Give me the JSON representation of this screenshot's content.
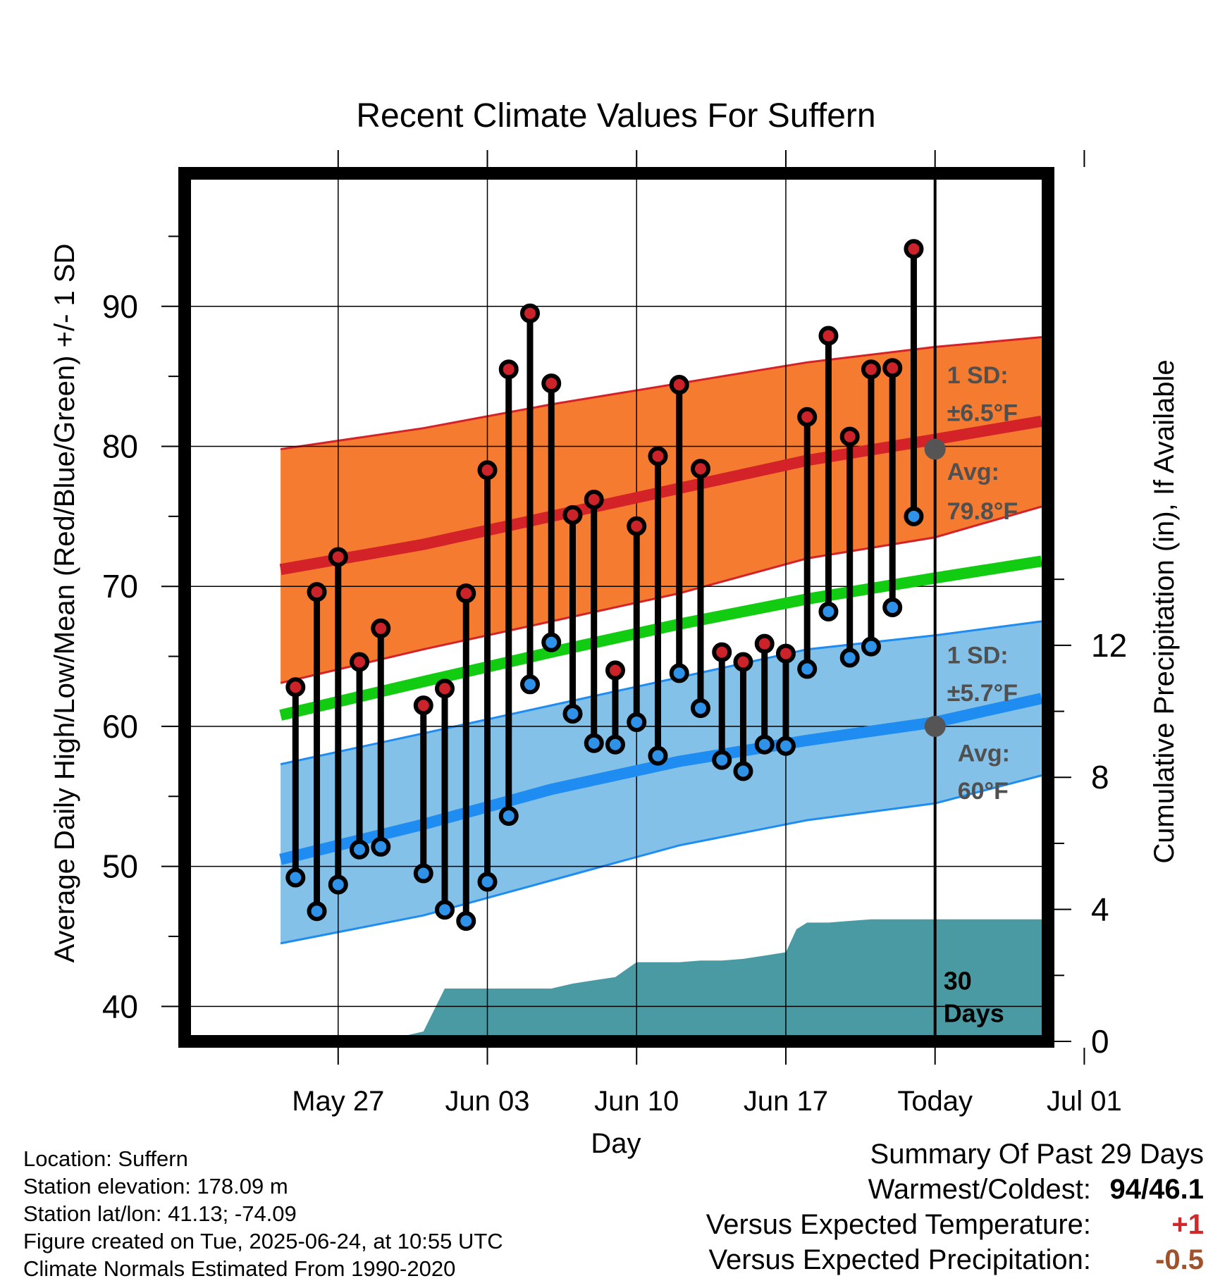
{
  "chart_data": {
    "type": "line",
    "title": "Recent Climate Values For Suffern",
    "xlabel": "Day",
    "ylabel": "Average Daily High/Low/Mean (Red/Blue/Green) +/- 1 SD",
    "y2label": "Cumulative Precipitation (in), If Available",
    "ylim": [
      37.5,
      99.5
    ],
    "y2lim": [
      0,
      26.3
    ],
    "yticks": [
      40,
      50,
      60,
      70,
      80,
      90
    ],
    "y2ticks": [
      0,
      4,
      8,
      12
    ],
    "xlim": [
      -7.2,
      33.3
    ],
    "xticks": [
      {
        "day": 0,
        "label": "May 27"
      },
      {
        "day": 7,
        "label": "Jun 03"
      },
      {
        "day": 14,
        "label": "Jun 10"
      },
      {
        "day": 21,
        "label": "Jun 17"
      },
      {
        "day": 28,
        "label": "Today"
      },
      {
        "day": 35,
        "label": "Jul 01"
      }
    ],
    "grid": true,
    "today_day": 28,
    "today_label": "30\nDays",
    "normal_high": {
      "x": [
        -2.7,
        4,
        10,
        16,
        22,
        28,
        33
      ],
      "mean": [
        71.2,
        73,
        75,
        77,
        79,
        80.5,
        81.8
      ],
      "upper": [
        79.8,
        81.3,
        83,
        84.5,
        86,
        87.1,
        87.8
      ],
      "lower": [
        63.1,
        65.5,
        67.5,
        69.5,
        72,
        73.5,
        75.7
      ]
    },
    "normal_mean": {
      "x": [
        -2.7,
        4,
        10,
        16,
        22,
        28,
        33
      ],
      "values": [
        60.8,
        63.2,
        65.3,
        67.3,
        69.1,
        70.6,
        71.8
      ]
    },
    "normal_low": {
      "x": [
        -2.7,
        4,
        10,
        16,
        22,
        28,
        33
      ],
      "mean": [
        50.5,
        53,
        55.5,
        57.5,
        59,
        60.3,
        62
      ],
      "upper": [
        57.3,
        59.5,
        61.5,
        63.5,
        65.5,
        66.5,
        67.5
      ],
      "lower": [
        44.5,
        46.5,
        49,
        51.5,
        53.3,
        54.5,
        56.5
      ]
    },
    "daily": [
      {
        "day": -2,
        "high": 62.8,
        "low": 49.2
      },
      {
        "day": -1,
        "high": 69.6,
        "low": 46.8
      },
      {
        "day": 0,
        "high": 72.1,
        "low": 48.7
      },
      {
        "day": 1,
        "high": 64.6,
        "low": 51.2
      },
      {
        "day": 2,
        "high": 67,
        "low": 51.4
      },
      {
        "day": 4,
        "high": 61.5,
        "low": 49.5
      },
      {
        "day": 5,
        "high": 62.7,
        "low": 46.9
      },
      {
        "day": 6,
        "high": 69.5,
        "low": 46.1
      },
      {
        "day": 7,
        "high": 78.3,
        "low": 48.9
      },
      {
        "day": 8,
        "high": 85.5,
        "low": 53.6
      },
      {
        "day": 9,
        "high": 89.5,
        "low": 63
      },
      {
        "day": 10,
        "high": 84.5,
        "low": 66
      },
      {
        "day": 11,
        "high": 75.1,
        "low": 60.9
      },
      {
        "day": 12,
        "high": 76.2,
        "low": 58.8
      },
      {
        "day": 13,
        "high": 64,
        "low": 58.7
      },
      {
        "day": 14,
        "high": 74.3,
        "low": 60.3
      },
      {
        "day": 15,
        "high": 79.3,
        "low": 57.9
      },
      {
        "day": 16,
        "high": 84.4,
        "low": 63.8
      },
      {
        "day": 17,
        "high": 78.4,
        "low": 61.3
      },
      {
        "day": 18,
        "high": 65.3,
        "low": 57.6
      },
      {
        "day": 19,
        "high": 64.6,
        "low": 56.8
      },
      {
        "day": 20,
        "high": 65.9,
        "low": 58.7
      },
      {
        "day": 21,
        "high": 65.2,
        "low": 58.6
      },
      {
        "day": 22,
        "high": 82.1,
        "low": 64.1
      },
      {
        "day": 23,
        "high": 87.9,
        "low": 68.2
      },
      {
        "day": 24,
        "high": 80.7,
        "low": 64.9
      },
      {
        "day": 25,
        "high": 85.5,
        "low": 65.7
      },
      {
        "day": 26,
        "high": 85.6,
        "low": 68.5
      },
      {
        "day": 27,
        "high": 94.1,
        "low": 75
      }
    ],
    "precip": {
      "x": [
        -7.2,
        0.8,
        2,
        3,
        4,
        5,
        6,
        7,
        8,
        9,
        10,
        11,
        12,
        13,
        14,
        15,
        16,
        17,
        18,
        19,
        20,
        21,
        21.5,
        22,
        23,
        24,
        25,
        26,
        27,
        28,
        33.3
      ],
      "values": [
        0,
        0,
        0.1,
        0.15,
        0.3,
        1.6,
        1.6,
        1.6,
        1.6,
        1.6,
        1.6,
        1.75,
        1.85,
        1.95,
        2.4,
        2.4,
        2.4,
        2.45,
        2.45,
        2.5,
        2.6,
        2.7,
        3.4,
        3.6,
        3.6,
        3.65,
        3.7,
        3.7,
        3.7,
        3.7,
        3.7
      ]
    },
    "annotations": {
      "high_sd_label": "1 SD:",
      "high_sd_value": "±6.5°F",
      "high_avg_label": "Avg:",
      "high_avg_value": "79.8°F",
      "high_avg_point": 79.8,
      "low_sd_label": "1 SD:",
      "low_sd_value": "±5.7°F",
      "low_avg_label": "Avg:",
      "low_avg_value": "60°F",
      "low_avg_point": 60
    },
    "colors": {
      "high_band": "#f47b2f",
      "high_line": "#d42328",
      "mean_line": "#11cc11",
      "low_band": "#84c1e8",
      "low_line": "#1e8cf0",
      "precip_fill": "#4a9aa4",
      "high_marker": "#cc2229",
      "low_marker": "#2e93e8",
      "annotation": "#505050"
    }
  },
  "info": {
    "location": "Location: Suffern",
    "elevation": "Station elevation: 178.09 m",
    "latlon": "Station lat/lon: 41.13; -74.09",
    "created": "Figure created on Tue, 2025-06-24, at 10:55 UTC",
    "normals": "Climate Normals Estimated From 1990-2020"
  },
  "summary": {
    "title": "Summary Of Past 29 Days",
    "warmest_label": "Warmest/Coldest:",
    "warmest_value": "94/46.1",
    "temp_label": "Versus Expected Temperature:",
    "temp_value": "+1",
    "temp_color": "#d0292c",
    "precip_label": "Versus Expected Precipitation:",
    "precip_value": "-0.5",
    "precip_color": "#a0522d"
  }
}
